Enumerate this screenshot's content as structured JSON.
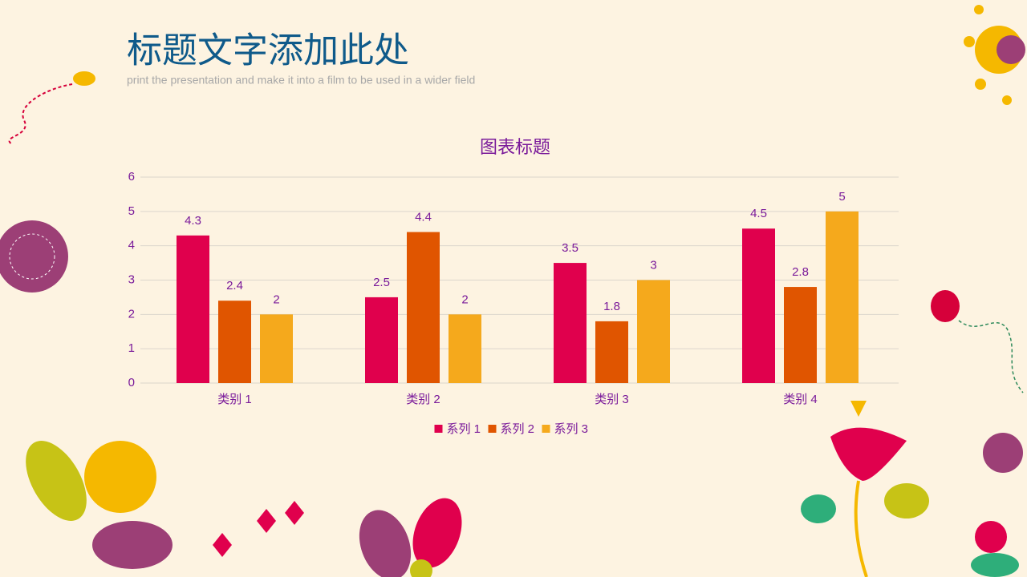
{
  "header": {
    "title": "标题文字添加此处",
    "subtitle": "print the presentation and make it into a film to be used in a wider field"
  },
  "chart_data": {
    "type": "bar",
    "title": "图表标题",
    "categories": [
      "类别 1",
      "类别 2",
      "类别 3",
      "类别 4"
    ],
    "series": [
      {
        "name": "系列 1",
        "color": "#e0004d",
        "values": [
          4.3,
          2.5,
          3.5,
          4.5
        ]
      },
      {
        "name": "系列 2",
        "color": "#e05500",
        "values": [
          2.4,
          4.4,
          1.8,
          2.8
        ]
      },
      {
        "name": "系列 3",
        "color": "#f5a91c",
        "values": [
          2,
          2,
          3,
          5
        ]
      }
    ],
    "ylim": [
      0,
      6
    ],
    "yticks": [
      0,
      1,
      2,
      3,
      4,
      5,
      6
    ],
    "grid": true,
    "legend": "bottom"
  }
}
